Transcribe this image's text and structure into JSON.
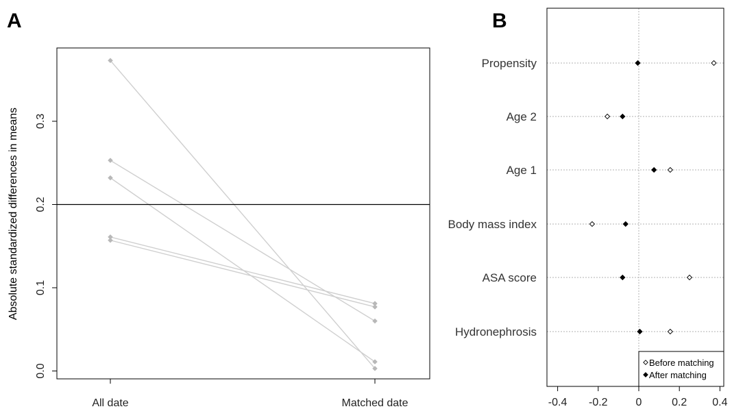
{
  "chart_data": [
    {
      "panel": "A",
      "type": "line",
      "title": "",
      "xlabel": "",
      "ylabel": "Absolute standardized differences in means",
      "categories": [
        "All date",
        "Matched date"
      ],
      "ylim": [
        -0.01,
        0.385
      ],
      "yticks": [
        "0.0",
        "0.1",
        "0.2",
        "0.3"
      ],
      "threshold": 0.2,
      "grid": false,
      "series": [
        {
          "values": [
            0.373,
            0.003
          ]
        },
        {
          "values": [
            0.253,
            0.06
          ]
        },
        {
          "values": [
            0.232,
            0.011
          ]
        },
        {
          "values": [
            0.161,
            0.081
          ]
        },
        {
          "values": [
            0.157,
            0.077
          ]
        }
      ],
      "colors": {
        "marker": "#b8b8b8",
        "line": "#cfcfcf",
        "threshold": "#000000"
      }
    },
    {
      "panel": "B",
      "type": "scatter",
      "title": "",
      "xlabel": "",
      "ylabel": "",
      "xlim": [
        -0.4,
        0.4
      ],
      "xticks": [
        "-0.4",
        "-0.2",
        "0",
        "0.2",
        "0.4"
      ],
      "categories": [
        "Propensity",
        "Age 2",
        "Age 1",
        "Body mass index",
        "ASA score",
        "Hydronephrosis"
      ],
      "series": [
        {
          "name": "Before matching",
          "marker": "open-diamond",
          "values": [
            0.37,
            -0.155,
            0.155,
            -0.23,
            0.25,
            0.155
          ]
        },
        {
          "name": "After matching",
          "marker": "filled-diamond",
          "values": [
            -0.005,
            -0.08,
            0.075,
            -0.065,
            -0.08,
            0.005
          ]
        }
      ],
      "grid": true,
      "legend": {
        "position": "bottom-right"
      }
    }
  ],
  "panels": {
    "a_label": "A",
    "b_label": "B"
  }
}
